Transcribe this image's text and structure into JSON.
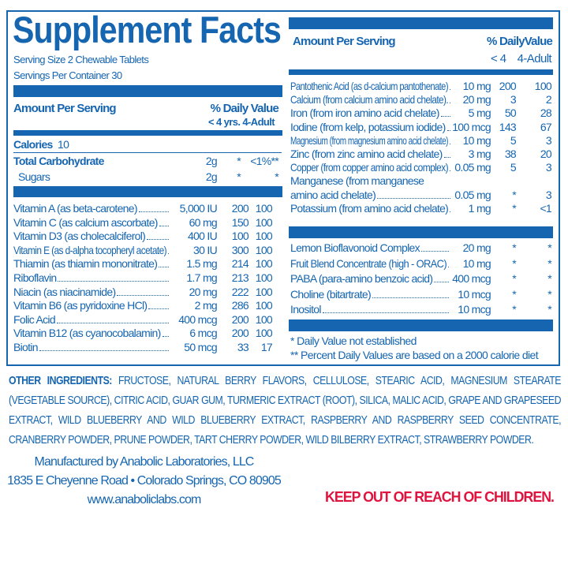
{
  "colors": {
    "brand_blue": "#1565b0",
    "warning_red": "#e0133f"
  },
  "title": "Supplement Facts",
  "serving_size": "Serving Size 2 Chewable Tablets",
  "servings_per_container": "Servings Per Container 30",
  "left": {
    "amount_header": "Amount Per Serving",
    "dv_header": "% Daily Value",
    "dv_subheader": "< 4 yrs.  4-Adult",
    "calories_label": "Calories",
    "calories_value": "10",
    "macros": [
      {
        "name": "Total Carbohydrate",
        "amount": "2g",
        "dv1": "*",
        "dv2": "<1%**"
      },
      {
        "name": "Sugars",
        "amount": "2g",
        "dv1": "*",
        "dv2": "*"
      }
    ],
    "vitamins": [
      {
        "name": "Vitamin A (as beta-carotene)",
        "amount": "5,000 IU",
        "dv1": "200",
        "dv2": "100"
      },
      {
        "name": "Vitamin C (as calcium ascorbate)",
        "amount": "60 mg",
        "dv1": "150",
        "dv2": "100"
      },
      {
        "name": "Vitamin D3 (as cholecalciferol)",
        "amount": "400 IU",
        "dv1": "100",
        "dv2": "100"
      },
      {
        "name": "Vitamin E (as d-alpha tocopheryl acetate)",
        "amount": "30 IU",
        "dv1": "300",
        "dv2": "100"
      },
      {
        "name": "Thiamin (as thiamin mononitrate)",
        "amount": "1.5 mg",
        "dv1": "214",
        "dv2": "100"
      },
      {
        "name": "Riboflavin",
        "amount": "1.7 mg",
        "dv1": "213",
        "dv2": "100"
      },
      {
        "name": "Niacin (as niacinamide)",
        "amount": "20 mg",
        "dv1": "222",
        "dv2": "100"
      },
      {
        "name": "Vitamin B6 (as pyridoxine HCl)",
        "amount": "2 mg",
        "dv1": "286",
        "dv2": "100"
      },
      {
        "name": "Folic Acid",
        "amount": "400 mcg",
        "dv1": "200",
        "dv2": "100"
      },
      {
        "name": "Vitamin B12 (as cyanocobalamin)",
        "amount": "6 mcg",
        "dv1": "200",
        "dv2": "100"
      },
      {
        "name": "Biotin",
        "amount": "50 mcg",
        "dv1": "33",
        "dv2": "17"
      }
    ]
  },
  "right": {
    "amount_header": "Amount Per Serving",
    "dv_header": "% DailyValue",
    "dv_sub1": "< 4",
    "dv_sub2": "4-Adult",
    "minerals": [
      {
        "name": "Pantothenic Acid (as d-calcium pantothenate)",
        "amount": "10 mg",
        "dv1": "200",
        "dv2": "100"
      },
      {
        "name": "Calcium (from calcium amino acid chelate).",
        "amount": "20 mg",
        "dv1": "3",
        "dv2": "2"
      },
      {
        "name": "Iron (from iron amino acid chelate)",
        "amount": "5 mg",
        "dv1": "50",
        "dv2": "28"
      },
      {
        "name": "Iodine (from kelp, potassium iodide)",
        "amount": "100 mcg",
        "dv1": "143",
        "dv2": "67"
      },
      {
        "name": "Magnesium (from magnesium amino acid chelate)",
        "amount": "10 mg",
        "dv1": "5",
        "dv2": "3"
      },
      {
        "name": "Zinc (from zinc amino acid chelate)",
        "amount": "3 mg",
        "dv1": "38",
        "dv2": "20"
      },
      {
        "name": "Copper (from copper amino acid complex)",
        "amount": "0.05 mg",
        "dv1": "5",
        "dv2": "3"
      },
      {
        "name": "Manganese (from manganese",
        "amount": "",
        "dv1": "",
        "dv2": ""
      },
      {
        "name": "amino acid chelate)",
        "amount": "0.05 mg",
        "dv1": "*",
        "dv2": "3"
      },
      {
        "name": "Potassium (from amino acid chelate)",
        "amount": "1 mg",
        "dv1": "*",
        "dv2": "<1"
      }
    ],
    "others": [
      {
        "name": "Lemon Bioflavonoid Complex",
        "amount": "20 mg",
        "dv1": "*",
        "dv2": "*"
      },
      {
        "name": "Fruit Blend Concentrate (high - ORAC)",
        "amount": "10 mg",
        "dv1": "*",
        "dv2": "*"
      },
      {
        "name": "PABA (para-amino benzoic acid)",
        "amount": "400 mcg",
        "dv1": "*",
        "dv2": "*"
      },
      {
        "name": "Choline (bitartrate)",
        "amount": "10 mcg",
        "dv1": "*",
        "dv2": "*"
      },
      {
        "name": "Inositol",
        "amount": "10 mcg",
        "dv1": "*",
        "dv2": "*"
      }
    ],
    "footnote1": "*  Daily Value not established",
    "footnote2": "** Percent Daily Values are based on a 2000 calorie diet"
  },
  "other_ingredients": {
    "label": "OTHER INGREDIENTS:",
    "text": "FRUCTOSE, NATURAL BERRY FLAVORS, CELLULOSE, STEARIC ACID, MAGNESIUM STEARATE (VEGETABLE SOURCE), CITRIC ACID,  GUAR GUM, TURMERIC EXTRACT (ROOT), SILICA, MALIC ACID, GRAPE AND GRAPESEED EXTRACT, WILD BLUEBERRY AND WILD BLUEBERRY EXTRACT,  RASPBERRY AND RASPBERRY SEED CONCENTRATE, CRANBERRY POWDER, PRUNE POWDER, TART CHERRY POWDER, WILD BILBERRY EXTRACT, STRAWBERRY POWDER."
  },
  "manufacturer": {
    "line1": "Manufactured by Anabolic Laboratories, LLC",
    "line2": "1835 E Cheyenne Road • Colorado Springs, CO 80905",
    "website": "www.anaboliclabs.com"
  },
  "warning": "KEEP OUT OF REACH OF CHILDREN."
}
